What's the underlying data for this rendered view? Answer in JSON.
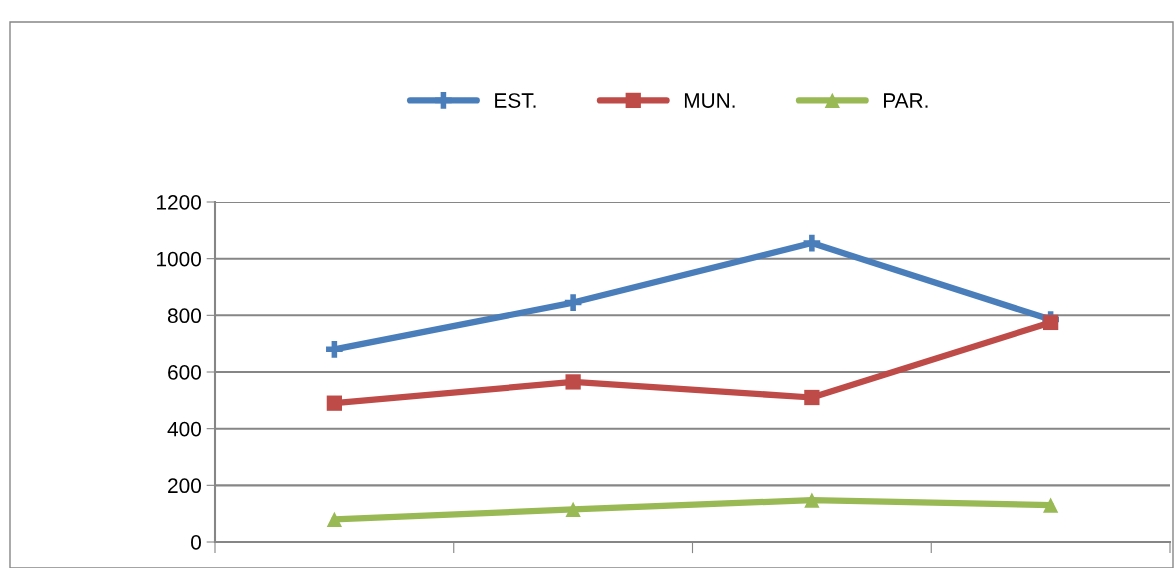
{
  "chart_data": {
    "type": "line",
    "categories": [
      null,
      null,
      null,
      null
    ],
    "series": [
      {
        "name": "EST.",
        "color": "#4a7ebb",
        "marker": "cross",
        "values": [
          680,
          845,
          1055,
          785
        ]
      },
      {
        "name": "MUN.",
        "color": "#be4b48",
        "marker": "square",
        "values": [
          490,
          565,
          510,
          775
        ]
      },
      {
        "name": "PAR.",
        "color": "#98b954",
        "marker": "triangle",
        "values": [
          80,
          115,
          148,
          130
        ]
      }
    ],
    "ylim": [
      0,
      1200
    ],
    "yticks": [
      0,
      200,
      400,
      600,
      800,
      1000,
      1200
    ],
    "grid": "y",
    "legend": "top",
    "line_style": "solid"
  }
}
